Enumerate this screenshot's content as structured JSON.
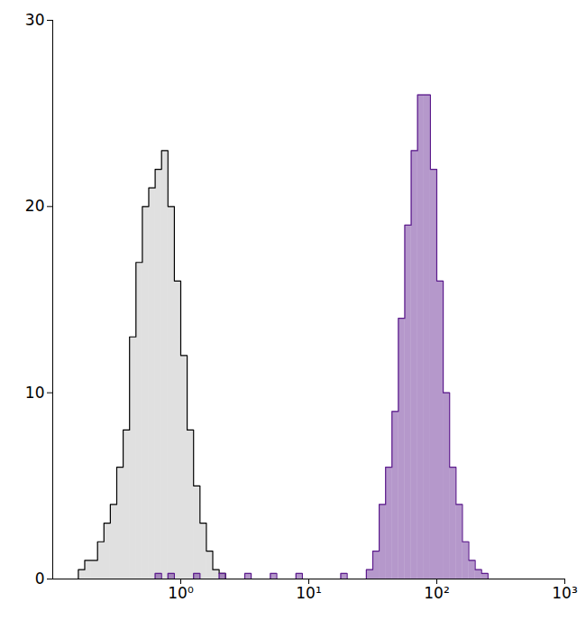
{
  "chart_data": {
    "type": "histogram",
    "log": "x",
    "xlim": [
      0.1,
      1000
    ],
    "xticks": [
      {
        "value": 1,
        "label": "10⁰"
      },
      {
        "value": 10,
        "label": "10¹"
      },
      {
        "value": 100,
        "label": "10²"
      },
      {
        "value": 1000,
        "label": "10³"
      }
    ],
    "ylim": [
      0,
      30
    ],
    "yticks": [
      0,
      10,
      20,
      30
    ],
    "bins": [
      0.1,
      0.1122,
      0.1259,
      0.1413,
      0.1585,
      0.1778,
      0.1995,
      0.2239,
      0.2512,
      0.2818,
      0.3162,
      0.3548,
      0.3981,
      0.4467,
      0.5012,
      0.5623,
      0.631,
      0.7079,
      0.7943,
      0.8913,
      1,
      1.122,
      1.259,
      1.413,
      1.585,
      1.778,
      1.995,
      2.239,
      2.512,
      2.818,
      3.162,
      3.548,
      3.981,
      4.467,
      5.012,
      5.623,
      6.31,
      7.079,
      7.943,
      8.913,
      10,
      11.22,
      12.59,
      14.13,
      15.85,
      17.78,
      19.95,
      22.39,
      25.12,
      28.18,
      31.62,
      35.48,
      39.81,
      44.67,
      50.12,
      56.23,
      63.1,
      70.79,
      79.43,
      89.13,
      100,
      112.2,
      125.9,
      141.3,
      158.5,
      177.8,
      199.5,
      223.9,
      251.2,
      281.8,
      316.2,
      354.8,
      398.1,
      446.7,
      501.2,
      562.3,
      631,
      707.9,
      794.3,
      891.3,
      1000
    ],
    "series": [
      {
        "color": "#000000",
        "values": [
          0,
          0,
          0,
          0,
          0.5,
          1,
          1,
          2,
          3,
          4,
          6,
          8,
          13,
          17,
          20,
          21,
          22,
          23,
          20,
          16,
          12,
          8,
          5,
          3,
          1.5,
          0.5,
          0.3,
          0,
          0,
          0,
          0,
          0,
          0,
          0,
          0,
          0,
          0,
          0,
          0,
          0,
          0,
          0,
          0,
          0,
          0,
          0,
          0,
          0,
          0,
          0,
          0,
          0,
          0,
          0,
          0,
          0,
          0,
          0,
          0,
          0,
          0,
          0,
          0,
          0,
          0,
          0,
          0,
          0,
          0,
          0,
          0,
          0,
          0,
          0,
          0,
          0,
          0,
          0,
          0,
          0
        ]
      },
      {
        "color": "#5b1a8c",
        "values": [
          0,
          0,
          0,
          0,
          0,
          0,
          0,
          0,
          0,
          0,
          0,
          0,
          0,
          0,
          0,
          0,
          0.3,
          0,
          0.3,
          0,
          0,
          0,
          0.3,
          0,
          0,
          0,
          0.3,
          0,
          0,
          0,
          0.3,
          0,
          0,
          0,
          0.3,
          0,
          0,
          0,
          0.3,
          0,
          0,
          0,
          0,
          0,
          0,
          0.3,
          0,
          0,
          0,
          0.5,
          1.5,
          4,
          6,
          9,
          14,
          19,
          23,
          26,
          26,
          22,
          16,
          10,
          6,
          4,
          2,
          1,
          0.5,
          0.3,
          0,
          0,
          0,
          0,
          0,
          0,
          0,
          0,
          0,
          0,
          0,
          0
        ]
      }
    ]
  }
}
